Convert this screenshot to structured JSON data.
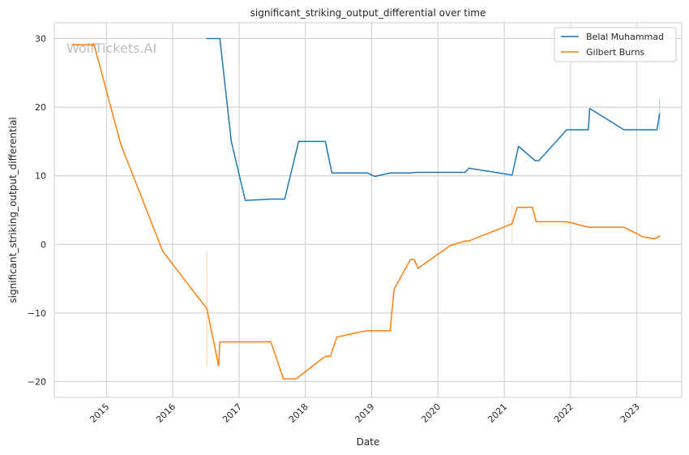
{
  "watermark": "WolfTickets.AI",
  "chart_data": {
    "type": "line",
    "title": "significant_striking_output_differential over time",
    "xlabel": "Date",
    "ylabel": "significant_striking_output_differential",
    "x_axis_type": "date",
    "xlim": [
      "2014-03-20",
      "2023-09-05"
    ],
    "ylim": [
      -22.3,
      32.3
    ],
    "x_ticks": [
      "2015-01-01",
      "2016-01-01",
      "2017-01-01",
      "2018-01-01",
      "2019-01-01",
      "2020-01-01",
      "2021-01-01",
      "2022-01-01",
      "2023-01-01"
    ],
    "x_tick_labels": [
      "2015",
      "2016",
      "2017",
      "2018",
      "2019",
      "2020",
      "2021",
      "2022",
      "2023"
    ],
    "y_ticks": [
      -20,
      -10,
      0,
      10,
      20,
      30
    ],
    "y_tick_labels": [
      "−20",
      "−10",
      "0",
      "10",
      "20",
      "30"
    ],
    "grid": true,
    "legend_position": "top-right",
    "series": [
      {
        "name": "Belal Muhammad",
        "color": "#1f77b4",
        "points": [
          [
            "2016-07-08",
            30.0
          ],
          [
            "2016-09-17",
            30.0
          ],
          [
            "2016-11-19",
            15.0
          ],
          [
            "2017-02-04",
            6.4
          ],
          [
            "2017-06-25",
            6.6
          ],
          [
            "2017-09-09",
            6.6
          ],
          [
            "2017-11-25",
            15.0
          ],
          [
            "2018-04-21",
            15.0
          ],
          [
            "2018-05-27",
            10.4
          ],
          [
            "2018-12-08",
            10.4
          ],
          [
            "2019-01-19",
            9.9
          ],
          [
            "2019-04-13",
            10.4
          ],
          [
            "2019-08-03",
            10.4
          ],
          [
            "2019-09-07",
            10.5
          ],
          [
            "2020-05-30",
            10.5
          ],
          [
            "2020-06-20",
            11.1
          ],
          [
            "2021-02-13",
            10.1
          ],
          [
            "2021-03-20",
            14.3
          ],
          [
            "2021-06-19",
            12.2
          ],
          [
            "2021-07-10",
            12.2
          ],
          [
            "2021-12-11",
            16.7
          ],
          [
            "2022-04-09",
            16.7
          ],
          [
            "2022-04-16",
            19.8
          ],
          [
            "2022-10-22",
            16.7
          ],
          [
            "2023-04-22",
            16.7
          ],
          [
            "2023-05-06",
            19.0
          ]
        ],
        "error_bars": [
          [
            "2023-05-06",
            16.7,
            21.3
          ]
        ]
      },
      {
        "name": "Gilbert Burns",
        "color": "#ff7f0e",
        "points": [
          [
            "2014-06-28",
            29.1
          ],
          [
            "2014-10-25",
            29.1
          ],
          [
            "2015-03-21",
            14.6
          ],
          [
            "2015-11-07",
            -1.0
          ],
          [
            "2016-07-08",
            -9.4
          ],
          [
            "2016-09-10",
            -17.7
          ],
          [
            "2016-09-17",
            -14.2
          ],
          [
            "2017-06-25",
            -14.2
          ],
          [
            "2017-09-02",
            -19.6
          ],
          [
            "2017-11-11",
            -19.6
          ],
          [
            "2018-04-21",
            -16.3
          ],
          [
            "2018-05-19",
            -16.3
          ],
          [
            "2018-06-23",
            -13.5
          ],
          [
            "2018-12-01",
            -12.6
          ],
          [
            "2019-04-13",
            -12.6
          ],
          [
            "2019-05-04",
            -6.6
          ],
          [
            "2019-08-03",
            -2.2
          ],
          [
            "2019-08-24",
            -2.2
          ],
          [
            "2019-09-14",
            -3.5
          ],
          [
            "2020-03-07",
            -0.2
          ],
          [
            "2020-05-30",
            0.5
          ],
          [
            "2020-06-20",
            0.5
          ],
          [
            "2021-02-13",
            3.0
          ],
          [
            "2021-03-13",
            5.4
          ],
          [
            "2021-06-05",
            5.4
          ],
          [
            "2021-06-26",
            3.3
          ],
          [
            "2021-12-11",
            3.3
          ],
          [
            "2022-04-09",
            2.5
          ],
          [
            "2022-10-22",
            2.5
          ],
          [
            "2023-02-04",
            1.1
          ],
          [
            "2023-04-08",
            0.8
          ],
          [
            "2023-05-06",
            1.2
          ]
        ],
        "error_bars": [
          [
            "2016-07-08",
            -17.8,
            -1.0
          ],
          [
            "2021-02-13",
            0.2,
            5.8
          ]
        ]
      }
    ]
  }
}
